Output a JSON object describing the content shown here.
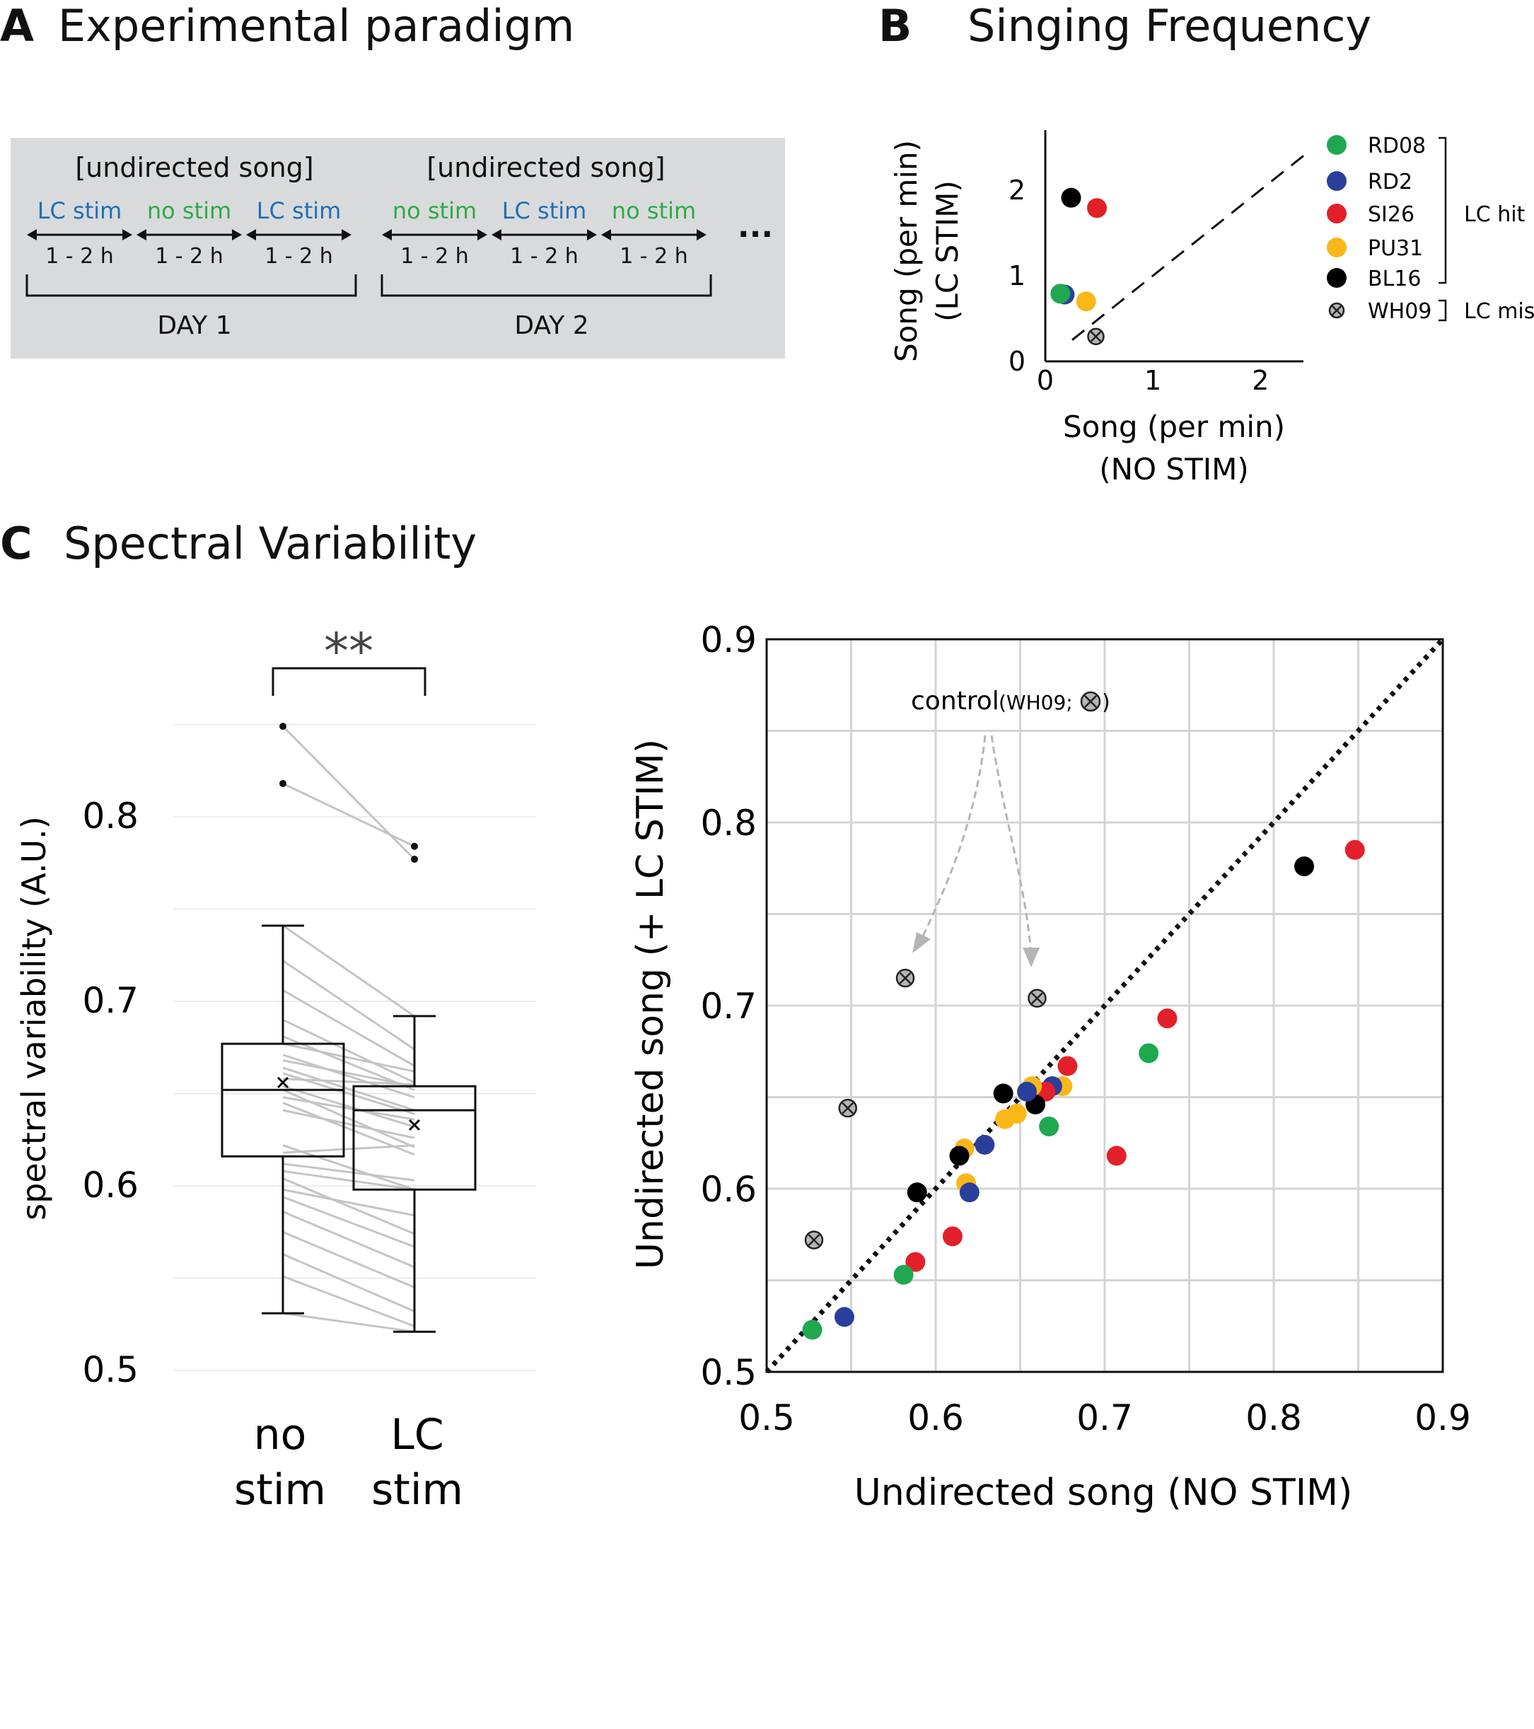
{
  "panels": {
    "A": {
      "letter": "A",
      "title": "Experimental paradigm",
      "days": [
        {
          "header": "[undirected song]",
          "label": "DAY 1",
          "blocks": [
            {
              "name": "LC stim",
              "duration": "1 - 2 h",
              "color": "#1f6fb5"
            },
            {
              "name": "no stim",
              "duration": "1 - 2 h",
              "color": "#2eaa4a"
            },
            {
              "name": "LC stim",
              "duration": "1 - 2 h",
              "color": "#1f6fb5"
            }
          ]
        },
        {
          "header": "[undirected song]",
          "label": "DAY 2",
          "blocks": [
            {
              "name": "no stim",
              "duration": "1 - 2 h",
              "color": "#2eaa4a"
            },
            {
              "name": "LC stim",
              "duration": "1 - 2 h",
              "color": "#1f6fb5"
            },
            {
              "name": "no stim",
              "duration": "1 - 2 h",
              "color": "#2eaa4a"
            }
          ]
        }
      ],
      "ellipsis": "..."
    },
    "B": {
      "letter": "B",
      "title": "Singing Frequency"
    },
    "C": {
      "letter": "C",
      "title": "Spectral Variability"
    }
  },
  "chart_data": [
    {
      "id": "singing-frequency",
      "type": "scatter",
      "xlabel": [
        "Song (per min)",
        "(NO STIM)"
      ],
      "ylabel": [
        "Song (per min)",
        "(LC  STIM)"
      ],
      "xlim": [
        0,
        2.4
      ],
      "ylim": [
        0,
        2.7
      ],
      "xticks": [
        0,
        1,
        2
      ],
      "yticks": [
        0,
        1,
        2
      ],
      "diagonal": "dashed",
      "points": [
        {
          "bird": "RD2",
          "x": 0.18,
          "y": 0.78
        },
        {
          "bird": "RD08",
          "x": 0.14,
          "y": 0.79
        },
        {
          "bird": "SI26",
          "x": 0.48,
          "y": 1.79
        },
        {
          "bird": "PU31",
          "x": 0.38,
          "y": 0.7
        },
        {
          "bird": "BL16",
          "x": 0.24,
          "y": 1.91
        },
        {
          "bird": "WH09",
          "x": 0.47,
          "y": 0.29
        }
      ],
      "legend": [
        {
          "name": "RD08",
          "color": "#1fa84f",
          "marker": "circle"
        },
        {
          "name": "RD2",
          "color": "#2a3f9c",
          "marker": "circle"
        },
        {
          "name": "SI26",
          "color": "#e3202a",
          "marker": "circle"
        },
        {
          "name": "PU31",
          "color": "#f9b71a",
          "marker": "circle"
        },
        {
          "name": "BL16",
          "color": "#000000",
          "marker": "circle"
        },
        {
          "name": "WH09",
          "color": "#b5b5b5",
          "marker": "crossed-circle"
        }
      ],
      "legend_groups": [
        {
          "label": "LC hit",
          "members": [
            "RD08",
            "RD2",
            "SI26",
            "PU31",
            "BL16"
          ]
        },
        {
          "label": "LC miss",
          "members": [
            "WH09"
          ]
        }
      ]
    },
    {
      "id": "spectral-variability-box",
      "type": "box",
      "ylabel": "spectral variability (A.U.)",
      "ylim": [
        0.49,
        0.87
      ],
      "yticks": [
        0.5,
        0.6,
        0.7,
        0.8
      ],
      "categories": [
        [
          "no",
          "stim"
        ],
        [
          "LC",
          "stim"
        ]
      ],
      "significance": "**",
      "boxes": [
        {
          "whisker_low": 0.531,
          "q1": 0.616,
          "median": 0.652,
          "q3": 0.677,
          "whisker_high": 0.741,
          "mean": 0.656,
          "outliers": [
            0.849,
            0.818
          ]
        },
        {
          "whisker_low": 0.521,
          "q1": 0.598,
          "median": 0.641,
          "q3": 0.654,
          "whisker_high": 0.692,
          "mean": 0.633,
          "outliers": [
            0.784,
            0.777
          ]
        }
      ],
      "paired_lines": [
        [
          0.849,
          0.777
        ],
        [
          0.818,
          0.784
        ],
        [
          0.741,
          0.692
        ],
        [
          0.722,
          0.674
        ],
        [
          0.706,
          0.665
        ],
        [
          0.69,
          0.656
        ],
        [
          0.681,
          0.652
        ],
        [
          0.677,
          0.662
        ],
        [
          0.671,
          0.648
        ],
        [
          0.668,
          0.654
        ],
        [
          0.664,
          0.641
        ],
        [
          0.661,
          0.639
        ],
        [
          0.658,
          0.655
        ],
        [
          0.654,
          0.632
        ],
        [
          0.652,
          0.621
        ],
        [
          0.648,
          0.636
        ],
        [
          0.645,
          0.617
        ],
        [
          0.641,
          0.626
        ],
        [
          0.622,
          0.598
        ],
        [
          0.618,
          0.622
        ],
        [
          0.612,
          0.603
        ],
        [
          0.608,
          0.598
        ],
        [
          0.604,
          0.574
        ],
        [
          0.598,
          0.584
        ],
        [
          0.594,
          0.567
        ],
        [
          0.586,
          0.556
        ],
        [
          0.575,
          0.545
        ],
        [
          0.563,
          0.532
        ],
        [
          0.551,
          0.524
        ],
        [
          0.531,
          0.521
        ]
      ]
    },
    {
      "id": "spectral-variability-scatter",
      "type": "scatter",
      "xlabel": "Undirected song (NO STIM)",
      "ylabel": "Undirected song (+ LC  STIM)",
      "xlim": [
        0.5,
        0.9
      ],
      "ylim": [
        0.5,
        0.9
      ],
      "xticks": [
        0.5,
        0.6,
        0.7,
        0.8,
        0.9
      ],
      "yticks": [
        0.5,
        0.6,
        0.7,
        0.8,
        0.9
      ],
      "grid": true,
      "diagonal": "dotted",
      "annotation": {
        "text": "control",
        "subtext": "(WH09;",
        "close": ")"
      },
      "points": [
        {
          "bird": "BL16",
          "x": 0.818,
          "y": 0.776
        },
        {
          "bird": "SI26",
          "x": 0.848,
          "y": 0.785
        },
        {
          "bird": "SI26",
          "x": 0.737,
          "y": 0.693
        },
        {
          "bird": "RD08",
          "x": 0.726,
          "y": 0.674
        },
        {
          "bird": "SI26",
          "x": 0.707,
          "y": 0.618
        },
        {
          "bird": "SI26",
          "x": 0.678,
          "y": 0.667
        },
        {
          "bird": "PU31",
          "x": 0.675,
          "y": 0.656
        },
        {
          "bird": "RD2",
          "x": 0.669,
          "y": 0.656
        },
        {
          "bird": "SI26",
          "x": 0.665,
          "y": 0.653
        },
        {
          "bird": "RD08",
          "x": 0.667,
          "y": 0.634
        },
        {
          "bird": "BL16",
          "x": 0.659,
          "y": 0.646
        },
        {
          "bird": "PU31",
          "x": 0.657,
          "y": 0.656
        },
        {
          "bird": "RD2",
          "x": 0.654,
          "y": 0.653
        },
        {
          "bird": "BL16",
          "x": 0.64,
          "y": 0.652
        },
        {
          "bird": "PU31",
          "x": 0.648,
          "y": 0.641
        },
        {
          "bird": "PU31",
          "x": 0.641,
          "y": 0.638
        },
        {
          "bird": "RD2",
          "x": 0.629,
          "y": 0.624
        },
        {
          "bird": "PU31",
          "x": 0.617,
          "y": 0.622
        },
        {
          "bird": "BL16",
          "x": 0.614,
          "y": 0.618
        },
        {
          "bird": "PU31",
          "x": 0.618,
          "y": 0.603
        },
        {
          "bird": "RD2",
          "x": 0.62,
          "y": 0.598
        },
        {
          "bird": "BL16",
          "x": 0.589,
          "y": 0.598
        },
        {
          "bird": "SI26",
          "x": 0.61,
          "y": 0.574
        },
        {
          "bird": "SI26",
          "x": 0.588,
          "y": 0.56
        },
        {
          "bird": "RD08",
          "x": 0.581,
          "y": 0.553
        },
        {
          "bird": "RD2",
          "x": 0.546,
          "y": 0.53
        },
        {
          "bird": "RD08",
          "x": 0.527,
          "y": 0.523
        },
        {
          "bird": "WH09",
          "x": 0.582,
          "y": 0.715
        },
        {
          "bird": "WH09",
          "x": 0.66,
          "y": 0.704
        },
        {
          "bird": "WH09",
          "x": 0.548,
          "y": 0.644
        },
        {
          "bird": "WH09",
          "x": 0.528,
          "y": 0.572
        }
      ]
    }
  ]
}
